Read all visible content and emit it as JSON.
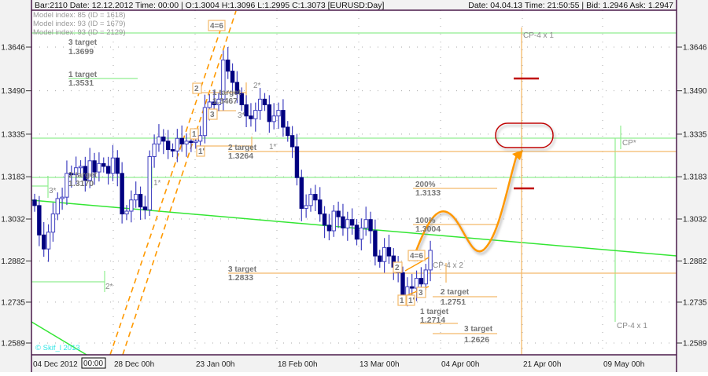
{
  "header": {
    "bar_info": "Bar:2110  Date:  12.12.2012  Time:  00:00  |  O:1.3004  H:1.3096  L:1.2995  C:1.3073    [EURUSD:Day]",
    "quote_info": "Date: 04.04.13  Time: 21:50:55 | Bid:  1.2946  Ask:  1.2947"
  },
  "models": [
    "Model index: 85  (ID = 1618)",
    "Model index: 93  (ID = 1679)",
    "Model index: 93  (ID = 2129)"
  ],
  "watermark": "© Skif_l 2013",
  "crosshair_time": "00:00",
  "colors": {
    "bull": "#ffffff",
    "bear": "#000080",
    "candle_outline": "#4040c0",
    "trendline": "#33e633",
    "level_green": "#90ee90",
    "target_orange": "#f3b96a",
    "forecast_orange": "#ff9900",
    "marker_red": "#c00000",
    "watermark": "#33e6e6"
  },
  "chart_data": {
    "type": "candlestick",
    "symbol": "EURUSD",
    "timeframe": "Day",
    "y_ticks": [
      "1.3646",
      "1.3490",
      "1.3335",
      "1.3183",
      "1.3032",
      "1.2882",
      "1.2735",
      "1.2589"
    ],
    "x_ticks": [
      "04 Dec 2012",
      "28 Dec 00h",
      "23 Jan 00h",
      "18 Feb 00h",
      "13 Mar 00h",
      "04 Apr 00h",
      "21 Apr 00h",
      "09 May 00h"
    ],
    "ylim": [
      1.253,
      1.378
    ],
    "grid": true,
    "first_open": 1.31,
    "closes": [
      1.308,
      1.2975,
      1.2925,
      1.2985,
      1.305,
      1.3105,
      1.311,
      1.3195,
      1.319,
      1.3215,
      1.322,
      1.317,
      1.324,
      1.32,
      1.323,
      1.322,
      1.3195,
      1.325,
      1.3195,
      1.305,
      1.306,
      1.31,
      1.312,
      1.3075,
      1.3065,
      1.3255,
      1.33,
      1.3325,
      1.331,
      1.328,
      1.3275,
      1.332,
      1.33,
      1.331,
      1.3305,
      1.331,
      1.333,
      1.343,
      1.345,
      1.344,
      1.346,
      1.36,
      1.356,
      1.352,
      1.348,
      1.344,
      1.34,
      1.339,
      1.342,
      1.346,
      1.344,
      1.338,
      1.34,
      1.342,
      1.336,
      1.333,
      1.329,
      1.318,
      1.307,
      1.308,
      1.312,
      1.31,
      1.305,
      1.301,
      1.299,
      1.306,
      1.304,
      1.3,
      1.303,
      1.301,
      1.296,
      1.3,
      1.303,
      1.299,
      1.29,
      1.288,
      1.293,
      1.29,
      1.286,
      1.284,
      1.276,
      1.279,
      1.2785,
      1.282,
      1.28,
      1.285,
      1.292
    ],
    "annotations": {
      "t3_top": {
        "label": "3 target",
        "value": "1.3699"
      },
      "t1_top": {
        "label": "1 target",
        "value": "1.3531"
      },
      "t1_mid": {
        "label": "1 target",
        "value": "1.3467"
      },
      "t2_mid": {
        "label": "2 target",
        "value": "1.3264"
      },
      "t2_left": {
        "label": "2 target",
        "value": "1.3170"
      },
      "t3_mid": {
        "label": "3 target",
        "value": "1.2833"
      },
      "p200": {
        "label": "200%",
        "value": "1.3133"
      },
      "p100": {
        "label": "100%",
        "value": "1.3004"
      },
      "t2_low": {
        "label": "2 target",
        "value": "1.2751"
      },
      "t1_low": {
        "label": "1 target",
        "value": "1.2714"
      },
      "t3_low": {
        "label": "3 target",
        "value": "1.2626"
      },
      "cp4_top": "CP-4 x 1",
      "cp4_right": "CP-4 x 1",
      "cp_star": "CP*",
      "cp4x2": "CP-4 x 2",
      "star1": "1*",
      "star2": "2*",
      "star3": "3*",
      "star2b": "2*",
      "star3b": "3*",
      "star1b": "1*",
      "wave_marks": {
        "m46a": "4=6",
        "m2a": "2",
        "m3a": "3",
        "m1a": "1",
        "m1pa": "1'",
        "m46b": "4=6",
        "m2b": "2",
        "m1b": "1",
        "m1pb": "1'",
        "m3b": "3"
      }
    }
  }
}
